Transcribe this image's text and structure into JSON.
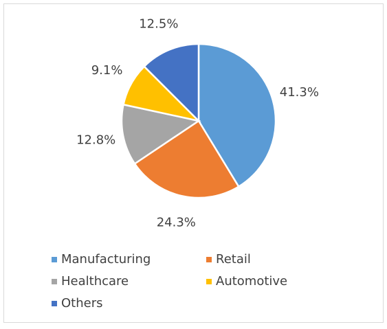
{
  "chart_data": {
    "type": "pie",
    "categories": [
      "Manufacturing",
      "Retail",
      "Healthcare",
      "Automotive",
      "Others"
    ],
    "values": [
      41.3,
      24.3,
      12.8,
      9.1,
      12.5
    ],
    "value_labels": [
      "41.3%",
      "24.3%",
      "12.8%",
      "9.1%",
      "12.5%"
    ],
    "colors": [
      "#5b9bd5",
      "#ed7d31",
      "#a5a5a5",
      "#ffc000",
      "#4472c4"
    ],
    "legend": "bottom"
  }
}
